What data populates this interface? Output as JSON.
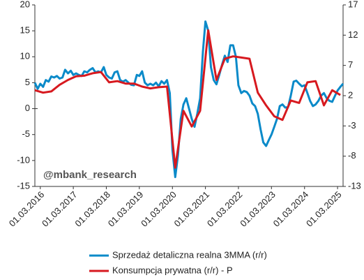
{
  "chart_data": {
    "type": "line",
    "annotation": "@mbank_research",
    "ylim": [
      -15,
      20
    ],
    "yticks": [
      -15,
      -10,
      -5,
      0,
      5,
      10,
      15,
      20
    ],
    "y2lim": [
      -13,
      17
    ],
    "y2ticks": [
      -13,
      -8,
      -3,
      2,
      7,
      12,
      17
    ],
    "xlim": [
      "2016-01-01",
      "2025-05-01"
    ],
    "xticks": [
      {
        "value": "2016-03-01",
        "label": "01.03.2016"
      },
      {
        "value": "2017-03-01",
        "label": "01.03.2017"
      },
      {
        "value": "2018-03-01",
        "label": "01.03.2018"
      },
      {
        "value": "2019-03-01",
        "label": "01.03.2019"
      },
      {
        "value": "2020-03-01",
        "label": "01.03.2020"
      },
      {
        "value": "2021-03-01",
        "label": "01.03.2021"
      },
      {
        "value": "2022-03-01",
        "label": "01.03.2022"
      },
      {
        "value": "2023-03-01",
        "label": "01.03.2023"
      },
      {
        "value": "2024-03-01",
        "label": "01.03.2024"
      },
      {
        "value": "2025-03-01",
        "label": "01.03.2025"
      }
    ],
    "series": [
      {
        "name": "Sprzedaż detaliczna realna 3MMA (r/r)",
        "color": "#0a8ac9",
        "x": [
          "2016-01-01",
          "2016-02-01",
          "2016-03-01",
          "2016-04-01",
          "2016-05-01",
          "2016-06-01",
          "2016-07-01",
          "2016-08-01",
          "2016-09-01",
          "2016-10-01",
          "2016-11-01",
          "2016-12-01",
          "2017-01-01",
          "2017-02-01",
          "2017-03-01",
          "2017-04-01",
          "2017-05-01",
          "2017-06-01",
          "2017-07-01",
          "2017-08-01",
          "2017-09-01",
          "2017-10-01",
          "2017-11-01",
          "2017-12-01",
          "2018-01-01",
          "2018-02-01",
          "2018-03-01",
          "2018-04-01",
          "2018-05-01",
          "2018-06-01",
          "2018-07-01",
          "2018-08-01",
          "2018-09-01",
          "2018-10-01",
          "2018-11-01",
          "2018-12-01",
          "2019-01-01",
          "2019-02-01",
          "2019-03-01",
          "2019-04-01",
          "2019-05-01",
          "2019-06-01",
          "2019-07-01",
          "2019-08-01",
          "2019-09-01",
          "2019-10-01",
          "2019-11-01",
          "2019-12-01",
          "2020-01-01",
          "2020-02-01",
          "2020-03-01",
          "2020-04-01",
          "2020-05-01",
          "2020-06-01",
          "2020-07-01",
          "2020-08-01",
          "2020-09-01",
          "2020-10-01",
          "2020-11-01",
          "2020-12-01",
          "2021-01-01",
          "2021-02-01",
          "2021-03-01",
          "2021-04-01",
          "2021-05-01",
          "2021-06-01",
          "2021-07-01",
          "2021-08-01",
          "2021-09-01",
          "2021-10-01",
          "2021-11-01",
          "2021-12-01",
          "2022-01-01",
          "2022-02-01",
          "2022-03-01",
          "2022-04-01",
          "2022-05-01",
          "2022-06-01",
          "2022-07-01",
          "2022-08-01",
          "2022-09-01",
          "2022-10-01",
          "2022-11-01",
          "2022-12-01",
          "2023-01-01",
          "2023-02-01",
          "2023-03-01",
          "2023-04-01",
          "2023-05-01",
          "2023-06-01",
          "2023-07-01",
          "2023-08-01",
          "2023-09-01",
          "2023-10-01",
          "2023-11-01",
          "2023-12-01",
          "2024-01-01",
          "2024-02-01",
          "2024-03-01",
          "2024-04-01",
          "2024-05-01",
          "2024-06-01",
          "2024-07-01",
          "2024-08-01",
          "2024-09-01",
          "2024-10-01",
          "2024-11-01",
          "2024-12-01",
          "2025-01-01",
          "2025-02-01",
          "2025-03-01",
          "2025-04-01",
          "2025-05-01"
        ],
        "values": [
          5.0,
          3.8,
          4.8,
          4.2,
          5.5,
          5.2,
          6.2,
          6.0,
          6.3,
          5.8,
          6.0,
          7.5,
          6.8,
          7.3,
          6.5,
          6.8,
          6.5,
          6.3,
          7.2,
          7.0,
          7.5,
          7.8,
          7.0,
          7.2,
          7.0,
          8.0,
          6.5,
          6.0,
          5.8,
          7.0,
          7.2,
          5.5,
          5.2,
          5.5,
          5.0,
          4.6,
          4.5,
          6.5,
          6.3,
          7.2,
          5.0,
          4.5,
          4.8,
          4.5,
          5.0,
          4.3,
          5.3,
          4.8,
          5.5,
          3.0,
          -8,
          -13.2,
          -9,
          -2,
          0.8,
          2.0,
          0,
          -2,
          -3.5,
          -1,
          2,
          11,
          16.8,
          15,
          8,
          5.5,
          4.7,
          6.5,
          8.5,
          10.2,
          9,
          12.2,
          12.2,
          10,
          4.5,
          3.0,
          3.4,
          3.2,
          2.5,
          1,
          0.5,
          -1,
          -4,
          -6.5,
          -7.2,
          -6,
          -5,
          -3.5,
          -2,
          0.5,
          0.8,
          0.2,
          0.3,
          2.5,
          5.2,
          5.4,
          4.8,
          4.3,
          4.5,
          3.0,
          1.5,
          0.5,
          0.8,
          1.5,
          2.5,
          3.0,
          2.0,
          1.5,
          1.3,
          2.5,
          3.5,
          4.2,
          4.8
        ]
      },
      {
        "name": "Konsumpcja prywatna (r/r) - P",
        "color": "#d7191f",
        "axis": "y2",
        "x": [
          "2016-01-01",
          "2016-04-01",
          "2016-07-01",
          "2016-10-01",
          "2017-01-01",
          "2017-04-01",
          "2017-07-01",
          "2017-10-01",
          "2018-01-01",
          "2018-04-01",
          "2018-07-01",
          "2018-10-01",
          "2019-01-01",
          "2019-04-01",
          "2019-07-01",
          "2019-10-01",
          "2020-01-01",
          "2020-04-01",
          "2020-07-01",
          "2020-10-01",
          "2021-01-01",
          "2021-04-01",
          "2021-07-01",
          "2021-10-01",
          "2022-01-01",
          "2022-04-01",
          "2022-07-01",
          "2022-10-01",
          "2023-01-01",
          "2023-04-01",
          "2023-07-01",
          "2023-10-01",
          "2024-01-01",
          "2024-04-01",
          "2024-07-01",
          "2024-10-01",
          "2025-01-01",
          "2025-04-01"
        ],
        "values": [
          2.9,
          2.5,
          2.7,
          3.8,
          4.6,
          5.2,
          5.3,
          5.7,
          5.9,
          4.2,
          4.4,
          4.0,
          4.0,
          3.5,
          3.2,
          3.4,
          3.5,
          -9.9,
          -0.5,
          -3.1,
          -0.5,
          12.8,
          4.6,
          8.1,
          8.5,
          8.3,
          8.1,
          2.5,
          0.4,
          -1.4,
          -2.0,
          1.2,
          0.8,
          4.2,
          4.4,
          0.4,
          2.9,
          2.1
        ]
      }
    ]
  }
}
